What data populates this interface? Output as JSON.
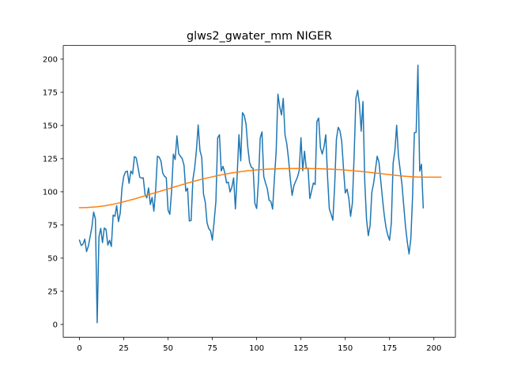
{
  "chart_data": {
    "type": "line",
    "title": "glws2_gwater_mm NIGER",
    "xlabel": "",
    "ylabel": "",
    "xlim": [
      -9.15,
      212.15
    ],
    "ylim": [
      -9.7,
      210.3
    ],
    "x_ticks": [
      0,
      25,
      50,
      75,
      100,
      125,
      150,
      175,
      200
    ],
    "y_ticks": [
      0,
      25,
      50,
      75,
      100,
      125,
      150,
      175,
      200
    ],
    "grid": false,
    "legend": "none",
    "series": [
      {
        "color": "#1f77b4",
        "values": [
          63.5,
          59.5,
          60.6,
          64.3,
          54.9,
          58.9,
          66.1,
          73.3,
          84.7,
          79.6,
          1.3,
          66.1,
          72.4,
          61.7,
          72.7,
          71.6,
          59.8,
          63.4,
          58.8,
          82.4,
          81.5,
          89.5,
          77.5,
          83.8,
          103.0,
          111.7,
          115.0,
          115.6,
          106.4,
          115.6,
          113.5,
          126.5,
          125.7,
          118.7,
          111.1,
          110.3,
          110.5,
          98.1,
          95.4,
          102.9,
          90.4,
          95.8,
          85.4,
          101.7,
          126.8,
          126.1,
          123.1,
          114.1,
          111.7,
          110.6,
          86.2,
          83.0,
          100.8,
          128.4,
          124.3,
          142.2,
          128.8,
          126.7,
          125.0,
          120.0,
          100.5,
          102.7,
          78.0,
          78.4,
          109.1,
          117.9,
          131.3,
          150.4,
          131.1,
          126.0,
          98.3,
          92.1,
          76.7,
          72.1,
          70.6,
          63.6,
          77.8,
          93.0,
          140.7,
          143.0,
          115.7,
          119.2,
          114.5,
          106.7,
          107.3,
          99.9,
          103.5,
          110.5,
          87.1,
          112.4,
          143.0,
          123.3,
          159.6,
          157.5,
          151.1,
          133.6,
          122.1,
          118.5,
          117.6,
          91.1,
          87.4,
          108.0,
          140.5,
          145.2,
          111.5,
          106.6,
          102.4,
          93.6,
          92.8,
          87.0,
          109.9,
          130.3,
          173.6,
          164.2,
          157.9,
          170.4,
          142.9,
          136.2,
          124.5,
          109.6,
          97.3,
          104.6,
          107.9,
          111.0,
          116.0,
          140.8,
          115.9,
          130.6,
          117.5,
          117.8,
          94.9,
          100.8,
          106.6,
          105.5,
          153.0,
          155.6,
          133.3,
          128.5,
          133.9,
          143.0,
          111.3,
          87.2,
          83.1,
          78.6,
          104.1,
          139.6,
          148.6,
          146.0,
          138.1,
          117.7,
          99.1,
          102.1,
          95.2,
          81.5,
          91.4,
          127.2,
          170.4,
          176.5,
          165.6,
          145.7,
          168.0,
          107.5,
          79.3,
          66.9,
          74.6,
          99.7,
          106.5,
          116.4,
          126.8,
          122.5,
          108.6,
          94.9,
          82.4,
          73.1,
          67.3,
          63.5,
          76.5,
          121.5,
          130.8,
          150.2,
          127.2,
          116.3,
          105.6,
          89.4,
          73.9,
          62.2,
          53.1,
          64.5,
          97.2,
          144.6,
          144.8,
          195.5,
          115.6,
          120.8,
          87.9
        ]
      },
      {
        "color": "#ff7f0e",
        "values": [
          88.0,
          88.0,
          88.0,
          88.1,
          88.1,
          88.2,
          88.3,
          88.4,
          88.5,
          88.6,
          88.7,
          88.9,
          89.1,
          89.2,
          89.4,
          89.6,
          89.9,
          90.1,
          90.4,
          90.6,
          90.9,
          91.2,
          91.5,
          91.8,
          92.1,
          92.5,
          92.8,
          93.2,
          93.5,
          93.9,
          94.2,
          94.6,
          95.0,
          95.4,
          95.8,
          96.2,
          96.6,
          97.0,
          97.4,
          97.8,
          98.2,
          98.6,
          99.0,
          99.4,
          99.8,
          100.2,
          100.6,
          101.0,
          101.4,
          101.8,
          102.2,
          102.6,
          103.0,
          103.4,
          103.8,
          104.2,
          104.6,
          105.0,
          105.4,
          105.8,
          106.2,
          106.6,
          106.9,
          107.3,
          107.7,
          108.1,
          108.4,
          108.8,
          109.1,
          109.5,
          109.8,
          110.1,
          110.4,
          110.7,
          111.0,
          111.3,
          111.6,
          111.9,
          112.2,
          112.5,
          112.7,
          113.0,
          113.3,
          113.5,
          113.8,
          114.0,
          114.2,
          114.4,
          114.6,
          114.8,
          115.0,
          115.2,
          115.4,
          115.5,
          115.7,
          115.9,
          116.0,
          116.1,
          116.3,
          116.4,
          116.5,
          116.6,
          116.7,
          116.8,
          116.9,
          117.0,
          117.1,
          117.1,
          117.2,
          117.2,
          117.3,
          117.3,
          117.4,
          117.4,
          117.5,
          117.5,
          117.5,
          117.5,
          117.6,
          117.6,
          117.6,
          117.6,
          117.6,
          117.6,
          117.6,
          117.6,
          117.6,
          117.6,
          117.6,
          117.6,
          117.6,
          117.5,
          117.5,
          117.5,
          117.5,
          117.4,
          117.4,
          117.3,
          117.3,
          117.2,
          117.2,
          117.1,
          117.1,
          117.0,
          116.9,
          116.8,
          116.8,
          116.7,
          116.6,
          116.5,
          116.4,
          116.3,
          116.2,
          116.1,
          116.0,
          115.8,
          115.7,
          115.6,
          115.5,
          115.3,
          115.2,
          115.1,
          114.9,
          114.8,
          114.6,
          114.5,
          114.3,
          114.2,
          114.0,
          113.9,
          113.7,
          113.6,
          113.4,
          113.2,
          113.1,
          112.9,
          112.8,
          112.6,
          112.5,
          112.3,
          112.2,
          112.0,
          111.9,
          111.8,
          111.7,
          111.6,
          111.5,
          111.4,
          111.3,
          111.2,
          111.2,
          111.1,
          111.1,
          111.1,
          111.0,
          111.0,
          111.0,
          111.0,
          111.0,
          111.0,
          111.0,
          111.0,
          111.0,
          111.0,
          111.0
        ]
      }
    ]
  }
}
